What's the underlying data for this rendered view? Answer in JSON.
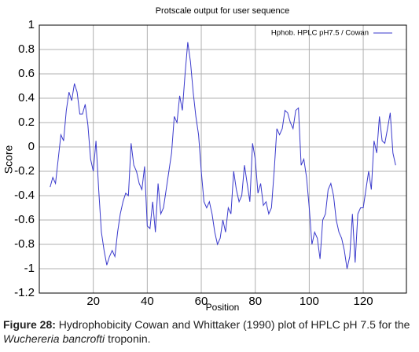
{
  "chart_data": {
    "type": "line",
    "title": "Protscale output  for  user  sequence",
    "xlabel": "Position",
    "ylabel": "Score",
    "x": [
      4,
      5,
      6,
      7,
      8,
      9,
      10,
      11,
      12,
      13,
      14,
      15,
      16,
      17,
      18,
      19,
      20,
      21,
      22,
      23,
      24,
      25,
      26,
      27,
      28,
      29,
      30,
      31,
      32,
      33,
      34,
      35,
      36,
      37,
      38,
      39,
      40,
      41,
      42,
      43,
      44,
      45,
      46,
      47,
      48,
      49,
      50,
      51,
      52,
      53,
      54,
      55,
      56,
      57,
      58,
      59,
      60,
      61,
      62,
      63,
      64,
      65,
      66,
      67,
      68,
      69,
      70,
      71,
      72,
      73,
      74,
      75,
      76,
      77,
      78,
      79,
      80,
      81,
      82,
      83,
      84,
      85,
      86,
      87,
      88,
      89,
      90,
      91,
      92,
      93,
      94,
      95,
      96,
      97,
      98,
      99,
      100,
      101,
      102,
      103,
      104,
      105,
      106,
      107,
      108,
      109,
      110,
      111,
      112,
      113,
      114,
      115,
      116,
      117,
      118,
      119,
      120,
      121,
      122,
      123,
      124,
      125,
      126,
      127,
      128,
      129,
      130,
      131,
      132
    ],
    "series": [
      {
        "name": "Hphob.   HPLC pH7.5   /  Cowan",
        "color": "#3a3acc",
        "values": [
          -0.33,
          -0.25,
          -0.3,
          -0.1,
          0.1,
          0.05,
          0.3,
          0.45,
          0.38,
          0.52,
          0.45,
          0.27,
          0.27,
          0.35,
          0.18,
          -0.1,
          -0.2,
          0.05,
          -0.35,
          -0.7,
          -0.85,
          -0.97,
          -0.9,
          -0.85,
          -0.9,
          -0.7,
          -0.55,
          -0.45,
          -0.38,
          -0.4,
          0.03,
          -0.15,
          -0.2,
          -0.3,
          -0.35,
          -0.16,
          -0.65,
          -0.67,
          -0.45,
          -0.7,
          -0.3,
          -0.55,
          -0.5,
          -0.35,
          -0.2,
          -0.05,
          0.25,
          0.2,
          0.42,
          0.3,
          0.6,
          0.86,
          0.7,
          0.45,
          0.25,
          0.1,
          -0.2,
          -0.45,
          -0.5,
          -0.45,
          -0.55,
          -0.7,
          -0.8,
          -0.75,
          -0.6,
          -0.7,
          -0.5,
          -0.55,
          -0.2,
          -0.35,
          -0.45,
          -0.4,
          -0.15,
          -0.3,
          -0.45,
          0.03,
          -0.1,
          -0.38,
          -0.3,
          -0.48,
          -0.45,
          -0.55,
          -0.5,
          -0.2,
          0.15,
          0.1,
          0.15,
          0.3,
          0.28,
          0.2,
          0.15,
          0.3,
          0.32,
          -0.15,
          -0.1,
          -0.25,
          -0.5,
          -0.8,
          -0.7,
          -0.75,
          -0.92,
          -0.6,
          -0.55,
          -0.35,
          -0.3,
          -0.4,
          -0.6,
          -0.7,
          -0.75,
          -0.85,
          -1.0,
          -0.9,
          -0.55,
          -0.95,
          -0.55,
          -0.5,
          -0.5,
          -0.35,
          -0.2,
          -0.35,
          0.05,
          -0.05,
          0.25,
          0.05,
          0.03,
          0.15,
          0.28,
          -0.05,
          -0.15
        ]
      }
    ],
    "xlim": [
      0,
      136
    ],
    "ylim": [
      -1.2,
      1
    ],
    "xticks": [
      20,
      40,
      60,
      80,
      100,
      120
    ],
    "yticks": [
      1,
      0.8,
      0.6,
      0.4,
      0.2,
      0,
      -0.2,
      -0.4,
      -0.6,
      -0.8,
      -1,
      -1.2
    ],
    "grid": true,
    "legend": "upper right"
  },
  "caption": {
    "label": "Figure 28:",
    "text": "Hydrophobicity Cowan and Whittaker (1990) plot of HPLC pH 7.5 for the",
    "species": "Wuchereria bancrofti",
    "tail": "troponin."
  }
}
